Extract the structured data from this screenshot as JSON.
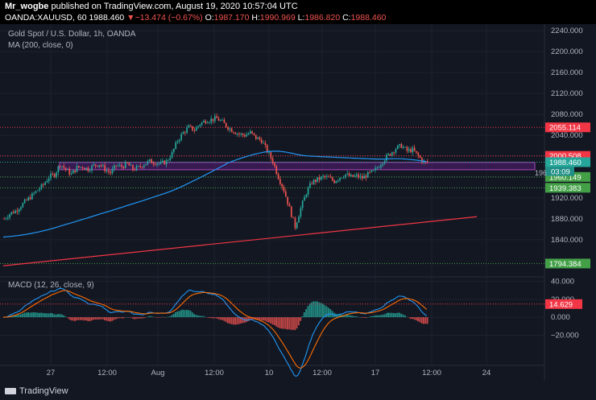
{
  "header": {
    "author": "Mr_wogbe",
    "published_text": "published on TradingView.com, August 19, 2020 10:57:04 UTC",
    "symbol": "OANDA:XAUUSD, 60",
    "price": "1988.460",
    "change_arrow": "▼",
    "change": "−13.474 (−0.67%)",
    "o_label": "O:",
    "o_value": "1987.170",
    "h_label": "H:",
    "h_value": "1990.969",
    "l_label": "L:",
    "l_value": "1986.820",
    "c_label": "C:",
    "c_value": "1988.460"
  },
  "legend": {
    "title": "Gold Spot / U.S. Dollar, 1h, OANDA",
    "ma": "MA (200, close, 0)",
    "macd": "MACD (12, 26, close, 9)"
  },
  "footer": {
    "brand": "TradingView"
  },
  "colors": {
    "up": "#26a69a",
    "down": "#ef5350",
    "ma": "#2196f3",
    "trend": "#f23645",
    "zone": "#7b1fa2",
    "macd": "#2196f3",
    "signal": "#ff6d00"
  },
  "chart_data": [
    {
      "type": "candlestick",
      "title": "Gold Spot / U.S. Dollar, 1h, OANDA",
      "x_tick_labels": [
        "27",
        "12:00",
        "Aug",
        "12:00",
        "10",
        "12:00",
        "17",
        "12:00",
        "24"
      ],
      "y_ticks": [
        1840,
        1880,
        1920,
        1960,
        2000,
        2040,
        2080,
        2120,
        2160,
        2200,
        2240
      ],
      "y_tick_labels": [
        "1840.000",
        "1880.000",
        "1920.000",
        "1960.000",
        "2000.000",
        "2040.000",
        "2080.000",
        "2120.000",
        "2160.000",
        "2200.000",
        "2240.000"
      ],
      "ylim": [
        1775,
        2245
      ],
      "close_path": [
        1880,
        1890,
        1895,
        1905,
        1915,
        1925,
        1935,
        1945,
        1960,
        1965,
        1985,
        1975,
        1965,
        1978,
        1980,
        1975,
        1982,
        1985,
        1975,
        1968,
        1982,
        1980,
        1985,
        1975,
        1978,
        1985,
        1990,
        1988,
        1985,
        1990,
        2005,
        2030,
        2045,
        2055,
        2050,
        2062,
        2068,
        2070,
        2072,
        2065,
        2055,
        2048,
        2042,
        2040,
        2045,
        2035,
        2030,
        2010,
        1990,
        1960,
        1935,
        1900,
        1865,
        1900,
        1930,
        1950,
        1955,
        1960,
        1958,
        1952,
        1960,
        1965,
        1960,
        1962,
        1958,
        1965,
        1970,
        1982,
        1995,
        2005,
        2015,
        2020,
        2010,
        2012,
        2000,
        1988
      ],
      "price_labels": [
        {
          "value": 2055.114,
          "label": "2055.114",
          "color": "#f23645"
        },
        {
          "value": 2000.508,
          "label": "2000.508",
          "color": "#f23645"
        },
        {
          "value": 1988.46,
          "label": "1988.460",
          "color": "#26a69a"
        },
        {
          "value": 1960.149,
          "label": "1960.149",
          "color": "#43a047"
        },
        {
          "value": 1939.383,
          "label": "1939.383",
          "color": "#43a047"
        },
        {
          "value": 1794.384,
          "label": "1794.384",
          "color": "#43a047"
        }
      ],
      "countdown": "03:09",
      "partial_label": "196",
      "zone": {
        "low": 1974,
        "high": 1988
      }
    },
    {
      "type": "line",
      "title": "MACD (12, 26, close, 9)",
      "y_ticks": [
        -20,
        0,
        20,
        40
      ],
      "y_tick_labels": [
        "−20.000",
        "0.000",
        "20.000",
        "40.000"
      ],
      "ylim": [
        -50,
        44
      ],
      "current_label": "14.629"
    }
  ]
}
